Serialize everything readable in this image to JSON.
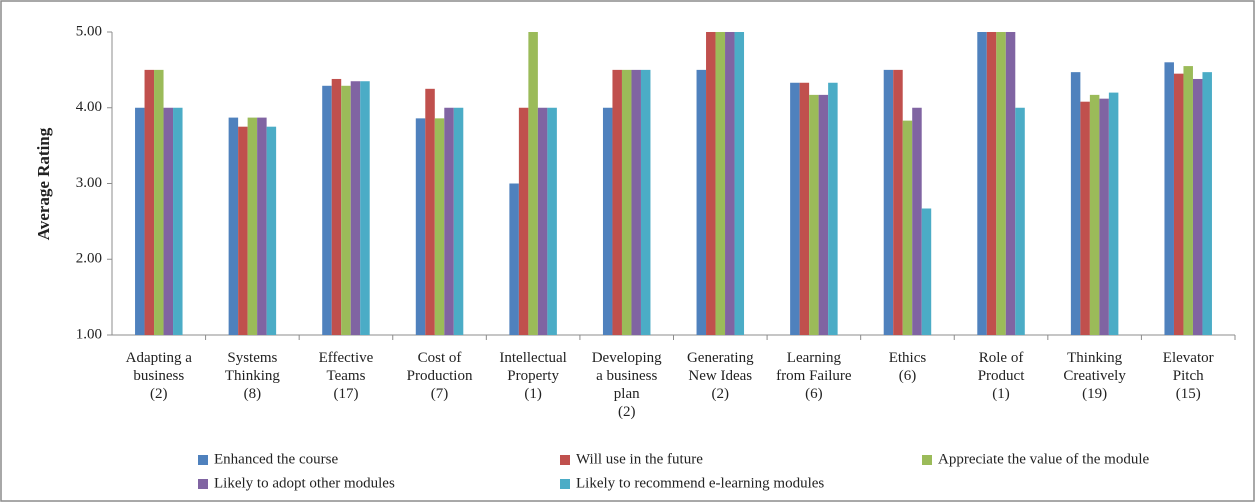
{
  "chart_data": {
    "type": "bar",
    "y_label": "Average Rating",
    "categories": [
      "Adapting a\nbusiness\n(2)",
      "Systems\nThinking\n(8)",
      "Effective\nTeams\n(17)",
      "Cost of\nProduction\n(7)",
      "Intellectual\nProperty\n(1)",
      "Developing\na business\nplan\n(2)",
      "Generating\nNew Ideas\n(2)",
      "Learning\nfrom Failure\n(6)",
      "Ethics\n(6)",
      "Role of\nProduct\n(1)",
      "Thinking\nCreatively\n(19)",
      "Elevator\nPitch\n(15)"
    ],
    "series": [
      {
        "name": "Enhanced the course",
        "color": "#4f81bd",
        "values": [
          4.0,
          3.87,
          4.29,
          3.86,
          3.0,
          4.0,
          4.5,
          4.33,
          4.5,
          5.0,
          4.47,
          4.6
        ]
      },
      {
        "name": "Will use in the future",
        "color": "#c0504d",
        "values": [
          4.5,
          3.75,
          4.38,
          4.25,
          4.0,
          4.5,
          5.0,
          4.33,
          4.5,
          5.0,
          4.08,
          4.45
        ]
      },
      {
        "name": "Appreciate the value of the module",
        "color": "#9bbb59",
        "values": [
          4.5,
          3.87,
          4.29,
          3.86,
          5.0,
          4.5,
          5.0,
          4.17,
          3.83,
          5.0,
          4.17,
          4.55
        ]
      },
      {
        "name": "Likely to adopt other modules",
        "color": "#8064a2",
        "values": [
          4.0,
          3.87,
          4.35,
          4.0,
          4.0,
          4.5,
          5.0,
          4.17,
          4.0,
          5.0,
          4.12,
          4.38
        ]
      },
      {
        "name": "Likely to recommend e-learning modules",
        "color": "#4bacc6",
        "values": [
          4.0,
          3.75,
          4.35,
          4.0,
          4.0,
          4.5,
          5.0,
          4.33,
          2.67,
          4.0,
          4.2,
          4.47
        ]
      }
    ],
    "ylim": [
      1,
      5
    ],
    "yticks": [
      {
        "value": 1,
        "label": "1.00"
      },
      {
        "value": 2,
        "label": "2.00"
      },
      {
        "value": 3,
        "label": "3.00"
      },
      {
        "value": 4,
        "label": "4.00"
      },
      {
        "value": 5,
        "label": "5.00"
      }
    ],
    "legend": "bottom"
  }
}
